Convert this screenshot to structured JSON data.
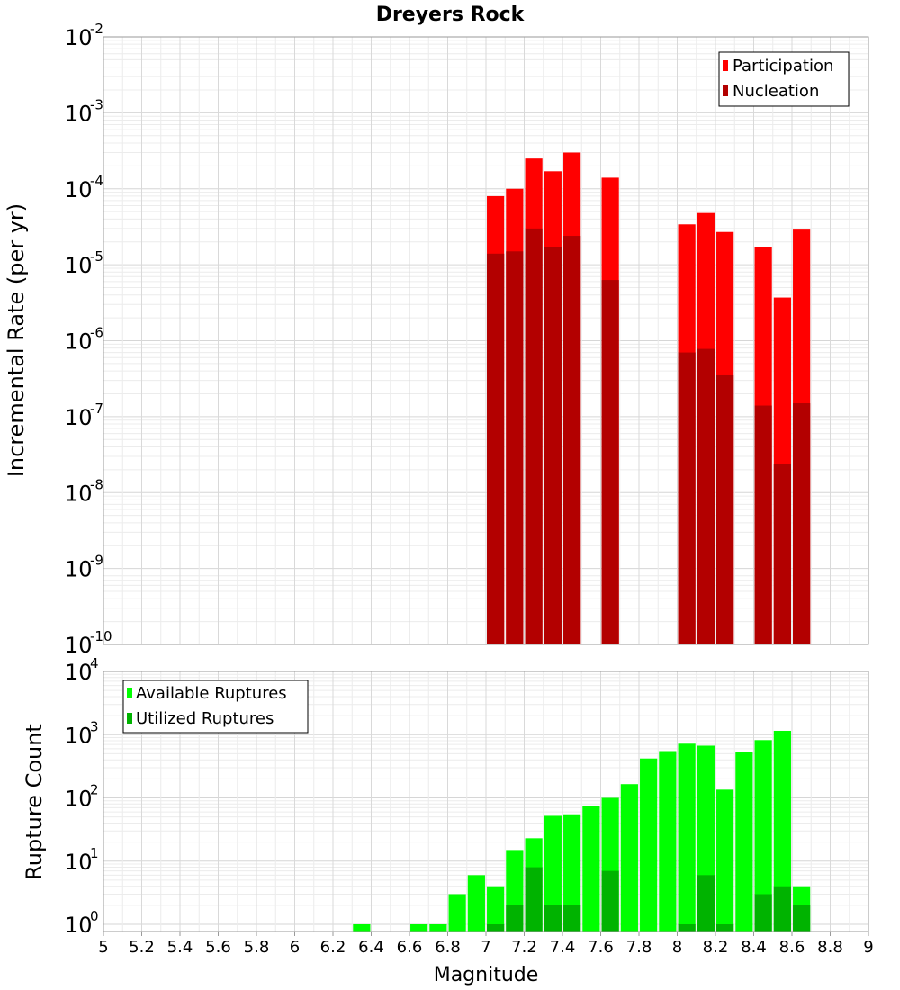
{
  "chart_data": [
    {
      "type": "bar",
      "title": "Dreyers Rock",
      "xlabel": "",
      "ylabel": "Incremental Rate (per yr)",
      "yscale": "log",
      "ylim": [
        1e-10,
        0.01
      ],
      "xlim": [
        5,
        9
      ],
      "ytick_exponents": [
        "-10",
        "-9",
        "-8",
        "-7",
        "-6",
        "-5",
        "-4",
        "-3",
        "-2"
      ],
      "legend": {
        "position": "top-right"
      },
      "x": [
        7.05,
        7.15,
        7.25,
        7.35,
        7.45,
        7.65,
        8.05,
        8.15,
        8.25,
        8.45,
        8.55,
        8.65
      ],
      "series": [
        {
          "name": "Participation",
          "color": "#ff0000",
          "values": [
            8e-05,
            0.0001,
            0.00025,
            0.00017,
            0.0003,
            0.00014,
            3.4e-05,
            4.8e-05,
            2.7e-05,
            1.7e-05,
            3.7e-06,
            2.9e-05
          ]
        },
        {
          "name": "Nucleation",
          "color": "#b30000",
          "values": [
            1.4e-05,
            1.5e-05,
            3e-05,
            1.7e-05,
            2.4e-05,
            6.3e-06,
            7e-07,
            7.8e-07,
            3.5e-07,
            1.4e-07,
            2.4e-08,
            1.5e-07
          ]
        }
      ]
    },
    {
      "type": "bar",
      "title": "",
      "xlabel": "Magnitude",
      "ylabel": "Rupture Count",
      "yscale": "log",
      "ylim": [
        1,
        10000.0
      ],
      "xlim": [
        5,
        9
      ],
      "ytick_exponents": [
        "0",
        "1",
        "2",
        "3",
        "4"
      ],
      "xtick_labels": [
        "5",
        "5.2",
        "5.4",
        "5.6",
        "5.8",
        "6",
        "6.2",
        "6.4",
        "6.6",
        "6.8",
        "7",
        "7.2",
        "7.4",
        "7.6",
        "7.8",
        "8",
        "8.2",
        "8.4",
        "8.6",
        "8.8",
        "9"
      ],
      "legend": {
        "position": "top-left"
      },
      "x": [
        6.35,
        6.65,
        6.75,
        6.85,
        6.95,
        7.05,
        7.15,
        7.25,
        7.35,
        7.45,
        7.55,
        7.65,
        7.75,
        7.85,
        7.95,
        8.05,
        8.15,
        8.25,
        8.35,
        8.45,
        8.55,
        8.65
      ],
      "series": [
        {
          "name": "Available Ruptures",
          "color": "#00ff00",
          "values": [
            1,
            1,
            1,
            3,
            6,
            4,
            15,
            23,
            52,
            55,
            75,
            100,
            165,
            420,
            550,
            720,
            670,
            135,
            540,
            820,
            1150,
            4
          ]
        },
        {
          "name": "Utilized Ruptures",
          "color": "#00b300",
          "values": [
            0,
            0,
            0,
            0,
            0,
            1,
            2,
            8,
            2,
            2,
            0,
            7,
            0,
            0,
            0,
            1,
            6,
            1,
            0,
            3,
            4,
            2
          ]
        }
      ]
    }
  ]
}
